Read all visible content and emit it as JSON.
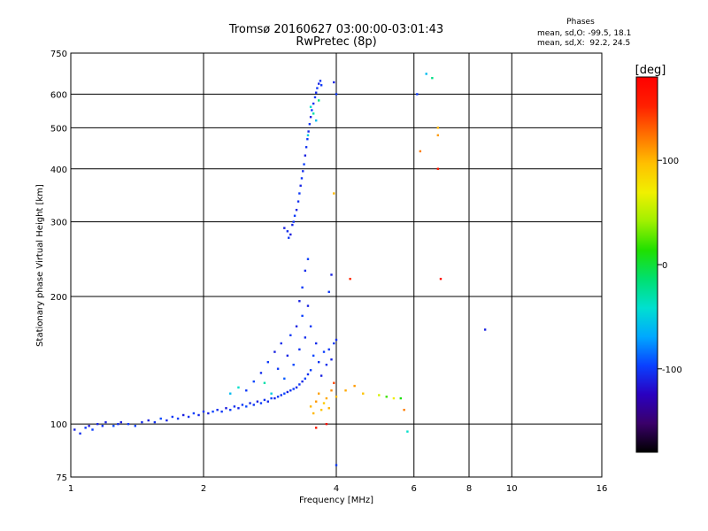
{
  "header": {
    "title_line1": "Tromsø 20160627 03:00:00-03:01:43",
    "title_line2": "RwPretec (8p)"
  },
  "phase_box": {
    "heading": "Phases",
    "o_line": "mean, sd,O: -99.5, 18.1",
    "x_line": "mean, sd,X:  92.2, 24.5"
  },
  "colorbar": {
    "label": "[deg]",
    "ticks": [
      {
        "label": "100",
        "value": 100
      },
      {
        "label": "0",
        "value": 0
      },
      {
        "label": "-100",
        "value": -100
      }
    ],
    "range": [
      -180,
      180
    ],
    "colors": [
      "#000000",
      "#3a006a",
      "#2a00c0",
      "#0a40ff",
      "#00a8ff",
      "#00e0d0",
      "#00e070",
      "#20e000",
      "#a0f000",
      "#f0f000",
      "#ffc000",
      "#ff7000",
      "#ff2000",
      "#ff0000"
    ]
  },
  "chart_data": {
    "type": "scatter",
    "title": "Tromsø 20160627 03:00:00-03:01:43",
    "subtitle": "RwPretec (8p)",
    "xlabel": "Frequency [MHz]",
    "ylabel": "Stationary phase Virtual Height [km]",
    "xscale": "log",
    "yscale": "log",
    "xlim": [
      1,
      16
    ],
    "ylim": [
      75,
      750
    ],
    "xticks": [
      {
        "label": "1",
        "value": 1
      },
      {
        "label": "2",
        "value": 2
      },
      {
        "label": "4",
        "value": 4
      },
      {
        "label": "6",
        "value": 6
      },
      {
        "label": "8",
        "value": 8
      },
      {
        "label": "10",
        "value": 10
      },
      {
        "label": "16",
        "value": 16
      }
    ],
    "yticks": [
      {
        "label": "75",
        "value": 75
      },
      {
        "label": "100",
        "value": 100
      },
      {
        "label": "200",
        "value": 200
      },
      {
        "label": "300",
        "value": 300
      },
      {
        "label": "400",
        "value": 400
      },
      {
        "label": "500",
        "value": 500
      },
      {
        "label": "600",
        "value": 600
      },
      {
        "label": "750",
        "value": 750
      }
    ],
    "grid": true,
    "series": [
      {
        "name": "O-mode lower trace",
        "points": [
          [
            1.02,
            97,
            -110
          ],
          [
            1.05,
            95,
            -105
          ],
          [
            1.08,
            98,
            -100
          ],
          [
            1.1,
            99,
            -115
          ],
          [
            1.12,
            97,
            -98
          ],
          [
            1.15,
            100,
            -108
          ],
          [
            1.18,
            99,
            -102
          ],
          [
            1.2,
            101,
            -110
          ],
          [
            1.25,
            99,
            -95
          ],
          [
            1.28,
            100,
            -105
          ],
          [
            1.3,
            101,
            -112
          ],
          [
            1.35,
            100,
            -100
          ],
          [
            1.4,
            99,
            -97
          ],
          [
            1.45,
            101,
            -106
          ],
          [
            1.5,
            102,
            -110
          ],
          [
            1.55,
            101,
            -103
          ],
          [
            1.6,
            103,
            -95
          ],
          [
            1.65,
            102,
            -108
          ],
          [
            1.7,
            104,
            -101
          ],
          [
            1.75,
            103,
            -99
          ],
          [
            1.8,
            105,
            -111
          ],
          [
            1.85,
            104,
            -104
          ],
          [
            1.9,
            106,
            -97
          ],
          [
            1.95,
            105,
            -107
          ],
          [
            2.0,
            107,
            -102
          ],
          [
            2.05,
            106,
            -110
          ],
          [
            2.1,
            107,
            -96
          ],
          [
            2.15,
            108,
            -105
          ],
          [
            2.2,
            107,
            -100
          ],
          [
            2.25,
            109,
            -112
          ],
          [
            2.3,
            108,
            -98
          ],
          [
            2.35,
            110,
            -104
          ],
          [
            2.4,
            109,
            -108
          ],
          [
            2.45,
            111,
            -100
          ],
          [
            2.5,
            110,
            -95
          ],
          [
            2.55,
            112,
            -107
          ],
          [
            2.6,
            111,
            -101
          ],
          [
            2.65,
            113,
            -110
          ],
          [
            2.7,
            112,
            -99
          ],
          [
            2.75,
            114,
            -103
          ],
          [
            2.8,
            113,
            -106
          ],
          [
            2.85,
            115,
            -97
          ],
          [
            2.9,
            115,
            -109
          ],
          [
            2.95,
            116,
            -100
          ],
          [
            3.0,
            117,
            -104
          ],
          [
            3.05,
            118,
            -95
          ],
          [
            3.1,
            119,
            -110
          ],
          [
            3.15,
            120,
            -102
          ],
          [
            3.2,
            121,
            -98
          ],
          [
            3.25,
            122,
            -106
          ],
          [
            3.3,
            124,
            -101
          ],
          [
            3.35,
            126,
            -108
          ],
          [
            3.4,
            128,
            -96
          ],
          [
            3.45,
            131,
            -104
          ],
          [
            3.5,
            134,
            -99
          ]
        ]
      },
      {
        "name": "O-mode scatter band",
        "points": [
          [
            2.3,
            118,
            -60
          ],
          [
            2.4,
            122,
            -40
          ],
          [
            2.5,
            120,
            -100
          ],
          [
            2.6,
            126,
            -95
          ],
          [
            2.7,
            132,
            -105
          ],
          [
            2.75,
            125,
            -30
          ],
          [
            2.8,
            140,
            -100
          ],
          [
            2.85,
            118,
            -50
          ],
          [
            2.9,
            148,
            -110
          ],
          [
            2.95,
            135,
            -100
          ],
          [
            3.0,
            155,
            -105
          ],
          [
            3.05,
            128,
            -90
          ],
          [
            3.1,
            145,
            -108
          ],
          [
            3.15,
            162,
            -100
          ],
          [
            3.2,
            138,
            -95
          ],
          [
            3.25,
            170,
            -110
          ],
          [
            3.3,
            150,
            -102
          ],
          [
            3.35,
            180,
            -98
          ],
          [
            3.4,
            160,
            -105
          ],
          [
            3.45,
            190,
            -110
          ],
          [
            3.5,
            170,
            -100
          ],
          [
            3.55,
            145,
            -95
          ],
          [
            3.6,
            155,
            -106
          ],
          [
            3.65,
            140,
            -102
          ],
          [
            3.7,
            130,
            -110
          ],
          [
            3.75,
            148,
            -98
          ],
          [
            3.8,
            138,
            -104
          ],
          [
            3.85,
            150,
            -100
          ],
          [
            3.9,
            142,
            -108
          ],
          [
            3.95,
            155,
            -101
          ],
          [
            4.0,
            158,
            -105
          ],
          [
            3.3,
            195,
            -110
          ],
          [
            3.35,
            210,
            -100
          ],
          [
            3.4,
            230,
            -105
          ],
          [
            3.45,
            245,
            -98
          ],
          [
            3.9,
            225,
            -110
          ],
          [
            3.85,
            205,
            -100
          ]
        ]
      },
      {
        "name": "O-mode F-layer trace",
        "points": [
          [
            3.05,
            290,
            -110
          ],
          [
            3.1,
            285,
            -105
          ],
          [
            3.12,
            275,
            -100
          ],
          [
            3.15,
            280,
            -112
          ],
          [
            3.18,
            295,
            -108
          ],
          [
            3.2,
            300,
            -102
          ],
          [
            3.22,
            310,
            -99
          ],
          [
            3.25,
            320,
            -110
          ],
          [
            3.28,
            335,
            -104
          ],
          [
            3.3,
            350,
            -100
          ],
          [
            3.32,
            365,
            -108
          ],
          [
            3.34,
            380,
            -101
          ],
          [
            3.36,
            395,
            -105
          ],
          [
            3.38,
            410,
            -98
          ],
          [
            3.4,
            430,
            -110
          ],
          [
            3.42,
            450,
            -103
          ],
          [
            3.44,
            470,
            -100
          ],
          [
            3.46,
            490,
            -107
          ],
          [
            3.48,
            510,
            -102
          ],
          [
            3.5,
            530,
            -110
          ],
          [
            3.52,
            550,
            -98
          ],
          [
            3.55,
            570,
            -104
          ],
          [
            3.58,
            590,
            -100
          ],
          [
            3.6,
            605,
            -106
          ],
          [
            3.62,
            620,
            -101
          ],
          [
            3.65,
            635,
            -108
          ],
          [
            3.68,
            645,
            -103
          ],
          [
            3.7,
            630,
            -100
          ],
          [
            3.5,
            560,
            -40
          ],
          [
            3.55,
            540,
            -30
          ],
          [
            3.6,
            520,
            -60
          ],
          [
            3.65,
            580,
            -20
          ],
          [
            3.45,
            480,
            -50
          ],
          [
            4.0,
            600,
            -100
          ],
          [
            3.95,
            640,
            -110
          ]
        ]
      },
      {
        "name": "X-mode and sporadic echoes",
        "points": [
          [
            3.5,
            110,
            100
          ],
          [
            3.6,
            113,
            110
          ],
          [
            3.7,
            108,
            95
          ],
          [
            3.8,
            115,
            105
          ],
          [
            3.55,
            106,
            100
          ],
          [
            3.65,
            118,
            108
          ],
          [
            3.75,
            112,
            92
          ],
          [
            3.85,
            109,
            102
          ],
          [
            3.9,
            120,
            115
          ],
          [
            4.0,
            116,
            98
          ],
          [
            3.95,
            125,
            140
          ],
          [
            4.2,
            120,
            105
          ],
          [
            4.4,
            123,
            110
          ],
          [
            4.6,
            118,
            95
          ],
          [
            5.0,
            117,
            60
          ],
          [
            5.2,
            116,
            20
          ],
          [
            5.4,
            115,
            70
          ],
          [
            5.6,
            115,
            10
          ],
          [
            5.8,
            96,
            -40
          ],
          [
            5.7,
            108,
            120
          ],
          [
            3.95,
            350,
            100
          ],
          [
            4.3,
            220,
            150
          ],
          [
            6.2,
            440,
            120
          ],
          [
            6.8,
            480,
            110
          ],
          [
            6.8,
            500,
            100
          ],
          [
            6.8,
            400,
            160
          ],
          [
            6.9,
            220,
            170
          ],
          [
            6.4,
            670,
            -60
          ],
          [
            6.6,
            655,
            -20
          ],
          [
            6.1,
            600,
            -100
          ],
          [
            8.7,
            167,
            -110
          ],
          [
            3.8,
            100,
            170
          ],
          [
            3.6,
            98,
            160
          ],
          [
            4.0,
            80,
            -100
          ]
        ]
      }
    ]
  }
}
